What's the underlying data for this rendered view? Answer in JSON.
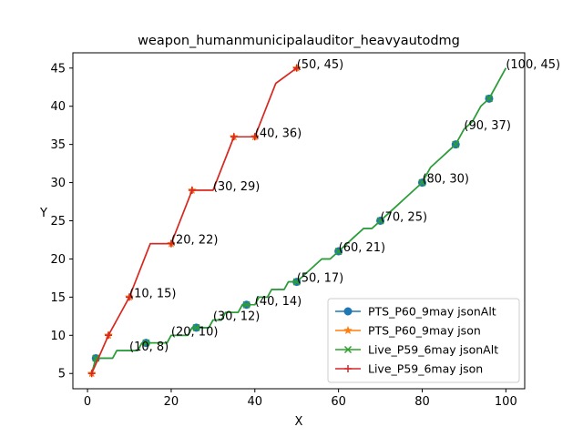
{
  "chart_data": {
    "type": "line",
    "title": "weapon_humanmunicipalauditor_heavyautodmg",
    "xlabel": "X",
    "ylabel": "Y",
    "xlim": [
      -3.5,
      104.5
    ],
    "ylim": [
      3.0,
      47.0
    ],
    "xticks": [
      0,
      20,
      40,
      60,
      80,
      100
    ],
    "yticks": [
      5,
      10,
      15,
      20,
      25,
      30,
      35,
      40,
      45
    ],
    "grid": false,
    "legend_position": "lower-right",
    "series": [
      {
        "name": "PTS_P60_9may jsonAlt",
        "color": "#1f77b4",
        "marker": "circle",
        "x": [
          1,
          2,
          3,
          4,
          5,
          6,
          7,
          8,
          9,
          10,
          11,
          12,
          13,
          14,
          15,
          16,
          17,
          18,
          19,
          20,
          21,
          22,
          23,
          24,
          25,
          26,
          27,
          28,
          29,
          30,
          31,
          32,
          33,
          34,
          35,
          36,
          37,
          38,
          39,
          40,
          41,
          42,
          43,
          44,
          45,
          46,
          47,
          48,
          49,
          50,
          52,
          54,
          56,
          58,
          60,
          62,
          64,
          66,
          68,
          70,
          72,
          74,
          76,
          78,
          80,
          82,
          84,
          86,
          88,
          90,
          92,
          94,
          96,
          98,
          100
        ],
        "y": [
          5,
          7,
          7,
          7,
          7,
          7,
          8,
          8,
          8,
          8,
          8,
          8,
          9,
          9,
          9,
          9,
          9,
          9,
          9,
          10,
          10,
          10,
          10,
          10,
          11,
          11,
          11,
          11,
          11,
          12,
          12,
          12,
          13,
          13,
          13,
          13,
          14,
          14,
          14,
          14,
          15,
          15,
          15,
          16,
          16,
          16,
          16,
          17,
          17,
          17,
          18,
          19,
          20,
          20,
          21,
          22,
          23,
          24,
          24,
          25,
          26,
          27,
          28,
          29,
          30,
          32,
          33,
          34,
          35,
          37,
          38,
          40,
          41,
          43,
          45
        ],
        "markers_at_x": [
          2,
          14,
          26,
          38,
          50,
          60,
          70,
          80,
          88,
          96
        ]
      },
      {
        "name": "PTS_P60_9may json",
        "color": "#ff7f0e",
        "marker": "star",
        "x": [
          1,
          5,
          10,
          15,
          20,
          25,
          30,
          35,
          40,
          45,
          50
        ],
        "y": [
          5,
          10,
          15,
          22,
          22,
          29,
          29,
          36,
          36,
          43,
          45
        ],
        "markers_at_x": [
          1,
          5,
          10,
          20,
          25,
          35,
          40,
          50
        ]
      },
      {
        "name": "Live_P59_6may jsonAlt",
        "color": "#2ca02c",
        "marker": "x",
        "x": [
          1,
          2,
          3,
          4,
          5,
          6,
          7,
          8,
          9,
          10,
          11,
          12,
          13,
          14,
          15,
          16,
          17,
          18,
          19,
          20,
          21,
          22,
          23,
          24,
          25,
          26,
          27,
          28,
          29,
          30,
          31,
          32,
          33,
          34,
          35,
          36,
          37,
          38,
          39,
          40,
          41,
          42,
          43,
          44,
          45,
          46,
          47,
          48,
          49,
          50,
          52,
          54,
          56,
          58,
          60,
          62,
          64,
          66,
          68,
          70,
          72,
          74,
          76,
          78,
          80,
          82,
          84,
          86,
          88,
          90,
          92,
          94,
          96,
          98,
          100
        ],
        "y": [
          5,
          7,
          7,
          7,
          7,
          7,
          8,
          8,
          8,
          8,
          8,
          8,
          9,
          9,
          9,
          9,
          9,
          9,
          9,
          10,
          10,
          10,
          10,
          10,
          11,
          11,
          11,
          11,
          11,
          12,
          12,
          12,
          13,
          13,
          13,
          13,
          14,
          14,
          14,
          14,
          15,
          15,
          15,
          16,
          16,
          16,
          16,
          17,
          17,
          17,
          18,
          19,
          20,
          20,
          21,
          22,
          23,
          24,
          24,
          25,
          26,
          27,
          28,
          29,
          30,
          32,
          33,
          34,
          35,
          37,
          38,
          40,
          41,
          43,
          45
        ],
        "markers_at_x": [
          2,
          14,
          26,
          38,
          50,
          60,
          70,
          80,
          88,
          96
        ]
      },
      {
        "name": "Live_P59_6may json",
        "color": "#d62728",
        "marker": "plus",
        "x": [
          1,
          5,
          10,
          15,
          20,
          25,
          30,
          35,
          40,
          45,
          50
        ],
        "y": [
          5,
          10,
          15,
          22,
          22,
          29,
          29,
          36,
          36,
          43,
          45
        ],
        "markers_at_x": [
          1,
          5,
          10,
          20,
          25,
          35,
          40,
          50
        ]
      }
    ],
    "annotations": [
      {
        "x": 10,
        "y": 8,
        "text": "(10, 8)"
      },
      {
        "x": 20,
        "y": 10,
        "text": "(20, 10)"
      },
      {
        "x": 30,
        "y": 12,
        "text": "(30, 12)"
      },
      {
        "x": 40,
        "y": 14,
        "text": "(40, 14)"
      },
      {
        "x": 50,
        "y": 17,
        "text": "(50, 17)"
      },
      {
        "x": 60,
        "y": 21,
        "text": "(60, 21)"
      },
      {
        "x": 70,
        "y": 25,
        "text": "(70, 25)"
      },
      {
        "x": 80,
        "y": 30,
        "text": "(80, 30)"
      },
      {
        "x": 90,
        "y": 37,
        "text": "(90, 37)"
      },
      {
        "x": 100,
        "y": 45,
        "text": "(100, 45)"
      },
      {
        "x": 10,
        "y": 15,
        "text": "(10, 15)"
      },
      {
        "x": 20,
        "y": 22,
        "text": "(20, 22)"
      },
      {
        "x": 30,
        "y": 29,
        "text": "(30, 29)"
      },
      {
        "x": 40,
        "y": 36,
        "text": "(40, 36)"
      },
      {
        "x": 50,
        "y": 45,
        "text": "(50, 45)"
      }
    ]
  }
}
